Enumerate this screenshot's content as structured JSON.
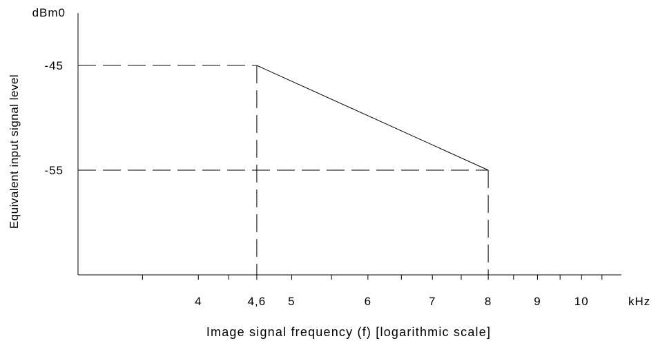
{
  "chart_data": {
    "type": "line",
    "title": "",
    "xlabel": "Image signal frequency (f) [logarithmic scale]",
    "ylabel": "Equivalent input signal level",
    "x_unit": "kHz",
    "y_unit": "dBm0",
    "x_scale": "log",
    "xlim": [
      3,
      11
    ],
    "ylim": [
      -65,
      -40
    ],
    "x_tick_labels": [
      {
        "value": 4,
        "label": "4"
      },
      {
        "value": 4.6,
        "label": "4,6"
      },
      {
        "value": 5,
        "label": "5"
      },
      {
        "value": 6,
        "label": "6"
      },
      {
        "value": 7,
        "label": "7"
      },
      {
        "value": 8,
        "label": "8"
      },
      {
        "value": 9,
        "label": "9"
      },
      {
        "value": 10,
        "label": "10"
      }
    ],
    "x_minor_ticks": [
      3.5,
      4.3,
      5.5,
      6.5,
      7.5,
      8.5,
      9.5,
      10.5
    ],
    "y_tick_labels": [
      {
        "value": -45,
        "label": "-45"
      },
      {
        "value": -55,
        "label": "-55"
      }
    ],
    "series": [
      {
        "x": [
          4.6,
          8
        ],
        "y": [
          -45,
          -55
        ]
      }
    ],
    "reference_lines": [
      {
        "style": "dashed",
        "from": [
          3,
          -45
        ],
        "to": [
          4.6,
          -45
        ]
      },
      {
        "style": "dashed",
        "from": [
          3,
          -55
        ],
        "to": [
          8,
          -55
        ]
      },
      {
        "style": "dashed",
        "from": [
          4.6,
          -45
        ],
        "to": [
          4.6,
          -65
        ]
      },
      {
        "style": "dashed",
        "from": [
          8,
          -55
        ],
        "to": [
          8,
          -65
        ]
      }
    ],
    "grid": false,
    "legend": "none"
  }
}
